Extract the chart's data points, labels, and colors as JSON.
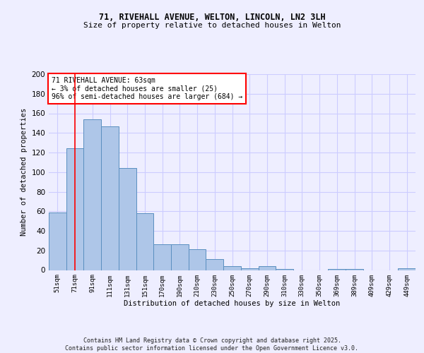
{
  "title1": "71, RIVEHALL AVENUE, WELTON, LINCOLN, LN2 3LH",
  "title2": "Size of property relative to detached houses in Welton",
  "xlabel": "Distribution of detached houses by size in Welton",
  "ylabel": "Number of detached properties",
  "categories": [
    "51sqm",
    "71sqm",
    "91sqm",
    "111sqm",
    "131sqm",
    "151sqm",
    "170sqm",
    "190sqm",
    "210sqm",
    "230sqm",
    "250sqm",
    "270sqm",
    "290sqm",
    "310sqm",
    "330sqm",
    "350sqm",
    "369sqm",
    "389sqm",
    "409sqm",
    "429sqm",
    "449sqm"
  ],
  "values": [
    59,
    124,
    154,
    147,
    104,
    58,
    26,
    26,
    21,
    11,
    4,
    2,
    4,
    1,
    0,
    0,
    1,
    1,
    0,
    0,
    2
  ],
  "bar_color": "#aec6e8",
  "bar_edge_color": "#5a8fc0",
  "grid_color": "#ccccff",
  "vline_x": 1,
  "vline_color": "red",
  "annotation_text": "71 RIVEHALL AVENUE: 63sqm\n← 3% of detached houses are smaller (25)\n96% of semi-detached houses are larger (684) →",
  "annotation_box_color": "white",
  "annotation_box_edge": "red",
  "ylim": [
    0,
    200
  ],
  "yticks": [
    0,
    20,
    40,
    60,
    80,
    100,
    120,
    140,
    160,
    180,
    200
  ],
  "footer": "Contains HM Land Registry data © Crown copyright and database right 2025.\nContains public sector information licensed under the Open Government Licence v3.0.",
  "bg_color": "#eeeeff"
}
